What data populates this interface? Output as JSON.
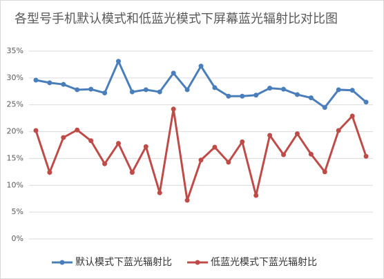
{
  "chart_data": {
    "type": "line",
    "title": "各型号手机默认模式和低蓝光模式下屏幕蓝光辐射比对比图",
    "categories": [
      null,
      null,
      null,
      null,
      null,
      null,
      null,
      null,
      null,
      null,
      null,
      null,
      null,
      null,
      null,
      null,
      null,
      null,
      null,
      null,
      null,
      null,
      null,
      null,
      null
    ],
    "series": [
      {
        "name": "默认模式下蓝光辐射比",
        "color": "#4a7ebb",
        "values": [
          29.6,
          29.1,
          28.8,
          27.8,
          27.9,
          27.2,
          33.1,
          27.4,
          27.8,
          27.4,
          30.9,
          27.8,
          32.2,
          28.2,
          26.6,
          26.6,
          26.8,
          28.1,
          27.9,
          26.9,
          26.3,
          24.5,
          27.8,
          27.7,
          25.5
        ]
      },
      {
        "name": "低蓝光模式下蓝光辐射比",
        "color": "#be4b48",
        "values": [
          20.2,
          12.4,
          18.9,
          20.3,
          18.3,
          14.0,
          17.8,
          12.4,
          17.2,
          8.6,
          24.2,
          7.2,
          14.7,
          17.1,
          14.3,
          18.1,
          8.1,
          19.3,
          15.7,
          19.6,
          15.8,
          12.5,
          20.2,
          22.9,
          15.4
        ]
      }
    ],
    "ylim": [
      0,
      35
    ],
    "yticks": [
      {
        "value": 0,
        "label": "0%"
      },
      {
        "value": 5,
        "label": "5%"
      },
      {
        "value": 10,
        "label": "10%"
      },
      {
        "value": 15,
        "label": "15%"
      },
      {
        "value": 20,
        "label": "20%"
      },
      {
        "value": 25,
        "label": "25%"
      },
      {
        "value": 30,
        "label": "30%"
      },
      {
        "value": 35,
        "label": "35%"
      }
    ],
    "grid": true,
    "legend": "bottom"
  }
}
